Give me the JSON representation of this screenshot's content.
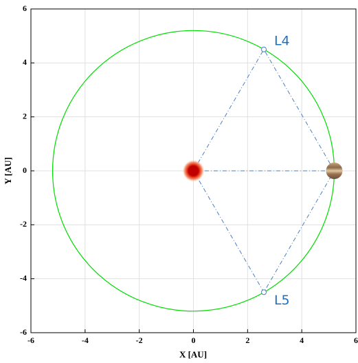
{
  "chart_data": {
    "type": "orbit",
    "xlabel": "X [AU]",
    "ylabel": "Y [AU]",
    "xlim": [
      -6,
      6
    ],
    "ylim": [
      -6,
      6
    ],
    "xticks": [
      -6,
      -4,
      -2,
      0,
      2,
      4,
      6
    ],
    "yticks": [
      -6,
      -4,
      -2,
      0,
      2,
      4,
      6
    ],
    "grid": true,
    "orbit_radius": 5.2,
    "orbit_color": "#00dd00",
    "bodies": {
      "x": [
        0,
        5.2
      ],
      "y": [
        0,
        0
      ]
    },
    "points": [
      {
        "label": "L4",
        "x": 2.6,
        "y": 4.5
      },
      {
        "label": "L5",
        "x": 2.6,
        "y": -4.5
      }
    ],
    "line_color": "#4a7fc0",
    "label_color": "#1f6fbf"
  }
}
